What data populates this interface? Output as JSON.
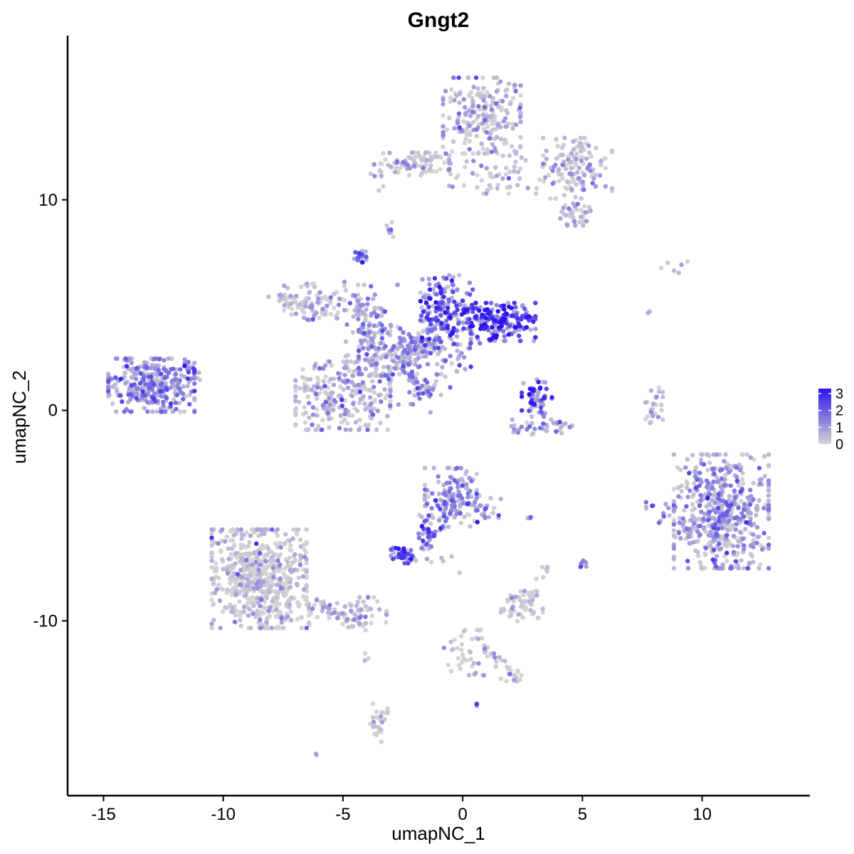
{
  "chart_data": {
    "type": "scatter",
    "title": "Gngt2",
    "xlabel": "umapNC_1",
    "ylabel": "umapNC_2",
    "xlim": [
      -16.5,
      14.5
    ],
    "ylim": [
      -18.3,
      17.8
    ],
    "x_ticks": [
      -15,
      -10,
      -5,
      0,
      5,
      10
    ],
    "x_tick_labels": [
      "-15",
      "-10",
      "-5",
      "0",
      "5",
      "10"
    ],
    "y_ticks": [
      -10,
      0,
      10
    ],
    "y_tick_labels": [
      "-10",
      "0",
      "10"
    ],
    "grid": false,
    "legend_position": "right",
    "color_scale": {
      "low": "#d3d3d3",
      "high": "#2b14f0",
      "min": 0,
      "max": 3.3,
      "ticks": [
        0,
        1,
        2,
        3
      ],
      "tick_labels": [
        "0",
        "1",
        "2",
        "3"
      ]
    },
    "clusters": [
      {
        "cx": -13.0,
        "cy": 1.2,
        "sx": 1.0,
        "sy": 0.7,
        "n": 320,
        "expr": 1.4
      },
      {
        "cx": -0.5,
        "cy": 4.8,
        "sx": 0.7,
        "sy": 0.9,
        "n": 160,
        "expr": 2.3
      },
      {
        "cx": 1.6,
        "cy": 4.2,
        "sx": 0.8,
        "sy": 0.5,
        "n": 170,
        "expr": 2.7
      },
      {
        "cx": -2.0,
        "cy": 2.8,
        "sx": 1.3,
        "sy": 0.6,
        "n": 180,
        "expr": 1.3
      },
      {
        "cx": -3.8,
        "cy": 3.8,
        "sx": 0.6,
        "sy": 1.2,
        "n": 90,
        "expr": 0.9
      },
      {
        "cx": -6.2,
        "cy": 5.2,
        "sx": 0.7,
        "sy": 0.5,
        "n": 80,
        "expr": 0.2
      },
      {
        "cx": -5.0,
        "cy": 0.7,
        "sx": 1.1,
        "sy": 0.9,
        "n": 240,
        "expr": 0.5
      },
      {
        "cx": -4.3,
        "cy": 7.3,
        "sx": 0.15,
        "sy": 0.15,
        "n": 18,
        "expr": 1.6
      },
      {
        "cx": -1.6,
        "cy": 0.8,
        "sx": 0.6,
        "sy": 0.5,
        "n": 30,
        "expr": 1.0
      },
      {
        "cx": 0.8,
        "cy": 14.0,
        "sx": 0.9,
        "sy": 1.0,
        "n": 220,
        "expr": 0.4
      },
      {
        "cx": 4.8,
        "cy": 11.5,
        "sx": 0.8,
        "sy": 0.8,
        "n": 130,
        "expr": 0.5
      },
      {
        "cx": 4.8,
        "cy": 9.5,
        "sx": 0.4,
        "sy": 0.4,
        "n": 40,
        "expr": 0.5
      },
      {
        "cx": -2.0,
        "cy": 11.7,
        "sx": 0.8,
        "sy": 0.3,
        "n": 80,
        "expr": 0.4
      },
      {
        "cx": 1.6,
        "cy": 11.2,
        "sx": 1.2,
        "sy": 0.5,
        "n": 60,
        "expr": 0.4
      },
      {
        "cx": -3.0,
        "cy": 8.6,
        "sx": 0.1,
        "sy": 0.2,
        "n": 8,
        "expr": 0.3
      },
      {
        "cx": 3.1,
        "cy": 0.6,
        "sx": 0.35,
        "sy": 0.5,
        "n": 60,
        "expr": 2.4
      },
      {
        "cx": 3.3,
        "cy": -0.8,
        "sx": 0.7,
        "sy": 0.2,
        "n": 40,
        "expr": 1.3
      },
      {
        "cx": 10.8,
        "cy": -4.8,
        "sx": 1.1,
        "sy": 1.5,
        "n": 560,
        "expr": 0.9
      },
      {
        "cx": 8.2,
        "cy": -4.8,
        "sx": 0.3,
        "sy": 0.3,
        "n": 12,
        "expr": 1.2
      },
      {
        "cx": 8.0,
        "cy": 0.3,
        "sx": 0.2,
        "sy": 0.5,
        "n": 25,
        "expr": 0.1
      },
      {
        "cx": -0.5,
        "cy": -4.0,
        "sx": 0.6,
        "sy": 0.7,
        "n": 120,
        "expr": 1.4
      },
      {
        "cx": 0.8,
        "cy": -4.8,
        "sx": 0.5,
        "sy": 0.5,
        "n": 30,
        "expr": 1.1
      },
      {
        "cx": -1.5,
        "cy": -5.8,
        "sx": 0.2,
        "sy": 0.7,
        "n": 30,
        "expr": 1.6
      },
      {
        "cx": -2.5,
        "cy": -6.9,
        "sx": 0.35,
        "sy": 0.2,
        "n": 45,
        "expr": 2.1
      },
      {
        "cx": -8.5,
        "cy": -8.0,
        "sx": 1.1,
        "sy": 1.3,
        "n": 600,
        "expr": 0.05
      },
      {
        "cx": -4.8,
        "cy": -9.6,
        "sx": 0.9,
        "sy": 0.4,
        "n": 60,
        "expr": 0.3
      },
      {
        "cx": 2.5,
        "cy": -9.3,
        "sx": 0.5,
        "sy": 0.4,
        "n": 50,
        "expr": 0.1
      },
      {
        "cx": 0.3,
        "cy": -11.5,
        "sx": 0.6,
        "sy": 0.6,
        "n": 40,
        "expr": 0.1
      },
      {
        "cx": 2.1,
        "cy": -12.6,
        "sx": 0.3,
        "sy": 0.15,
        "n": 15,
        "expr": 0.1
      },
      {
        "cx": -3.5,
        "cy": -14.8,
        "sx": 0.2,
        "sy": 0.6,
        "n": 25,
        "expr": 0.3
      },
      {
        "cx": 3.5,
        "cy": -7.5,
        "sx": 0.1,
        "sy": 0.1,
        "n": 5,
        "expr": 0.1
      },
      {
        "cx": 5.0,
        "cy": -7.3,
        "sx": 0.1,
        "sy": 0.15,
        "n": 8,
        "expr": 0.8
      },
      {
        "cx": -0.8,
        "cy": -7.2,
        "sx": 0.4,
        "sy": 0.3,
        "n": 5,
        "expr": 0.5
      },
      {
        "cx": 9.0,
        "cy": 6.8,
        "sx": 0.5,
        "sy": 0.15,
        "n": 6,
        "expr": 0.3
      },
      {
        "cx": 7.8,
        "cy": 4.7,
        "sx": 0.05,
        "sy": 0.1,
        "n": 3,
        "expr": 0.0
      },
      {
        "cx": 2.7,
        "cy": -5.1,
        "sx": 0.1,
        "sy": 0.03,
        "n": 4,
        "expr": 1.8
      },
      {
        "cx": 0.6,
        "cy": -14.0,
        "sx": 0.05,
        "sy": 0.05,
        "n": 3,
        "expr": 2.0
      },
      {
        "cx": -6.1,
        "cy": -16.3,
        "sx": 0.05,
        "sy": 0.05,
        "n": 2,
        "expr": 2.0
      },
      {
        "cx": -4.0,
        "cy": -11.8,
        "sx": 0.05,
        "sy": 0.15,
        "n": 3,
        "expr": 0.1
      }
    ],
    "streaks": [
      {
        "from": [
          -2.3,
          1.8
        ],
        "to": [
          -1.3,
          0.7
        ],
        "n": 25,
        "expr": 1.5
      },
      {
        "from": [
          -3.2,
          1.6
        ],
        "to": [
          -1.0,
          4.2
        ],
        "n": 60,
        "expr": 1.3
      },
      {
        "from": [
          -4.5,
          5.5
        ],
        "to": [
          -3.5,
          1.5
        ],
        "n": 50,
        "expr": 0.8
      },
      {
        "from": [
          -8.0,
          5.5
        ],
        "to": [
          -5.0,
          4.3
        ],
        "n": 30,
        "expr": 0.2
      },
      {
        "from": [
          -11.0,
          1.5
        ],
        "to": [
          -11.8,
          2.8
        ],
        "n": 12,
        "expr": 1.5
      },
      {
        "from": [
          -6.2,
          -9.0
        ],
        "to": [
          -3.8,
          -10.4
        ],
        "n": 35,
        "expr": 0.4
      },
      {
        "from": [
          0.3,
          -10.5
        ],
        "to": [
          2.2,
          -12.6
        ],
        "n": 20,
        "expr": 0.1
      },
      {
        "from": [
          -0.5,
          -5.3
        ],
        "to": [
          -1.8,
          -6.5
        ],
        "n": 15,
        "expr": 1.5
      },
      {
        "from": [
          2.5,
          -10.0
        ],
        "to": [
          3.3,
          -7.8
        ],
        "n": 12,
        "expr": 0.1
      },
      {
        "from": [
          -3.8,
          12.0
        ],
        "to": [
          -3.3,
          10.4
        ],
        "n": 8,
        "expr": 0.5
      }
    ]
  }
}
